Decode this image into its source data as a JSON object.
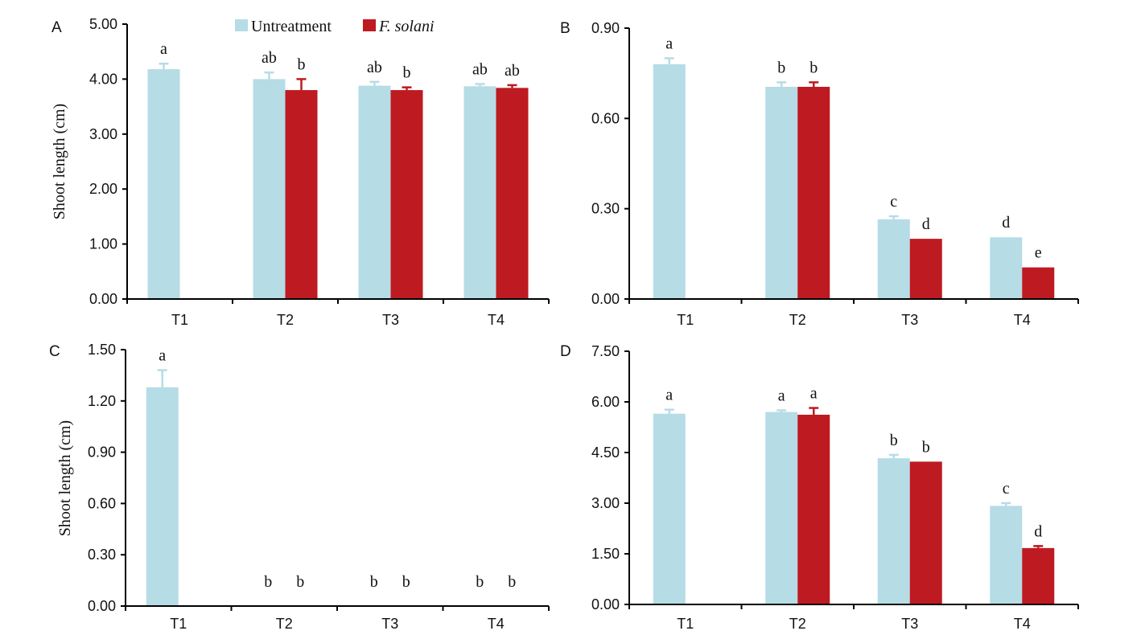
{
  "legend": [
    {
      "label": "Untreatment",
      "color": "#b6dce6",
      "italic": false
    },
    {
      "label": "F. solani",
      "color": "#be1a21",
      "italic": true
    }
  ],
  "chart_data": [
    {
      "type": "bar",
      "panel": "A",
      "title": "",
      "ylabel": "Shoot length (cm)",
      "ylim": [
        0,
        5
      ],
      "yticks": [
        "0.00",
        "1.00",
        "2.00",
        "3.00",
        "4.00",
        "5.00"
      ],
      "categories": [
        "T1",
        "T2",
        "T3",
        "T4"
      ],
      "series": [
        {
          "name": "Untreatment",
          "values": [
            4.18,
            4.0,
            3.88,
            3.87
          ],
          "errors": [
            0.1,
            0.12,
            0.07,
            0.04
          ],
          "labels": [
            "a",
            "ab",
            "ab",
            "ab"
          ]
        },
        {
          "name": "F. solani",
          "values": [
            null,
            3.8,
            3.8,
            3.84
          ],
          "errors": [
            null,
            0.2,
            0.05,
            0.05
          ],
          "labels": [
            null,
            "b",
            "b",
            "ab"
          ]
        }
      ]
    },
    {
      "type": "bar",
      "panel": "B",
      "title": "",
      "ylabel": "",
      "ylim": [
        0,
        0.9
      ],
      "yticks": [
        "0.00",
        "0.30",
        "0.60",
        "0.90"
      ],
      "categories": [
        "T1",
        "T2",
        "T3",
        "T4"
      ],
      "series": [
        {
          "name": "Untreatment",
          "values": [
            0.78,
            0.705,
            0.265,
            0.205
          ],
          "errors": [
            0.02,
            0.015,
            0.01,
            0.0
          ],
          "labels": [
            "a",
            "b",
            "c",
            "d"
          ]
        },
        {
          "name": "F. solani",
          "values": [
            null,
            0.705,
            0.2,
            0.105
          ],
          "errors": [
            null,
            0.015,
            0.0,
            0.0
          ],
          "labels": [
            null,
            "b",
            "d",
            "e"
          ]
        }
      ]
    },
    {
      "type": "bar",
      "panel": "C",
      "title": "",
      "ylabel": "Shoot length (cm)",
      "ylim": [
        0,
        1.5
      ],
      "yticks": [
        "0.00",
        "0.30",
        "0.60",
        "0.90",
        "1.20",
        "1.50"
      ],
      "categories": [
        "T1",
        "T2",
        "T3",
        "T4"
      ],
      "series": [
        {
          "name": "Untreatment",
          "values": [
            1.28,
            0,
            0,
            0
          ],
          "errors": [
            0.1,
            0,
            0,
            0
          ],
          "labels": [
            "a",
            "b",
            "b",
            "b"
          ]
        },
        {
          "name": "F. solani",
          "values": [
            null,
            0,
            0,
            0
          ],
          "errors": [
            null,
            0,
            0,
            0
          ],
          "labels": [
            null,
            "b",
            "b",
            "b"
          ]
        }
      ]
    },
    {
      "type": "bar",
      "panel": "D",
      "title": "",
      "ylabel": "",
      "ylim": [
        0,
        7.5
      ],
      "yticks": [
        "0.00",
        "1.50",
        "3.00",
        "4.50",
        "6.00",
        "7.50"
      ],
      "categories": [
        "T1",
        "T2",
        "T3",
        "T4"
      ],
      "series": [
        {
          "name": "Untreatment",
          "values": [
            5.65,
            5.7,
            4.33,
            2.92
          ],
          "errors": [
            0.12,
            0.05,
            0.1,
            0.08
          ],
          "labels": [
            "a",
            "a",
            "b",
            "c"
          ]
        },
        {
          "name": "F. solani",
          "values": [
            null,
            5.62,
            4.23,
            1.67
          ],
          "errors": [
            null,
            0.2,
            0.0,
            0.06
          ],
          "labels": [
            null,
            "a",
            "b",
            "d"
          ]
        }
      ]
    }
  ]
}
